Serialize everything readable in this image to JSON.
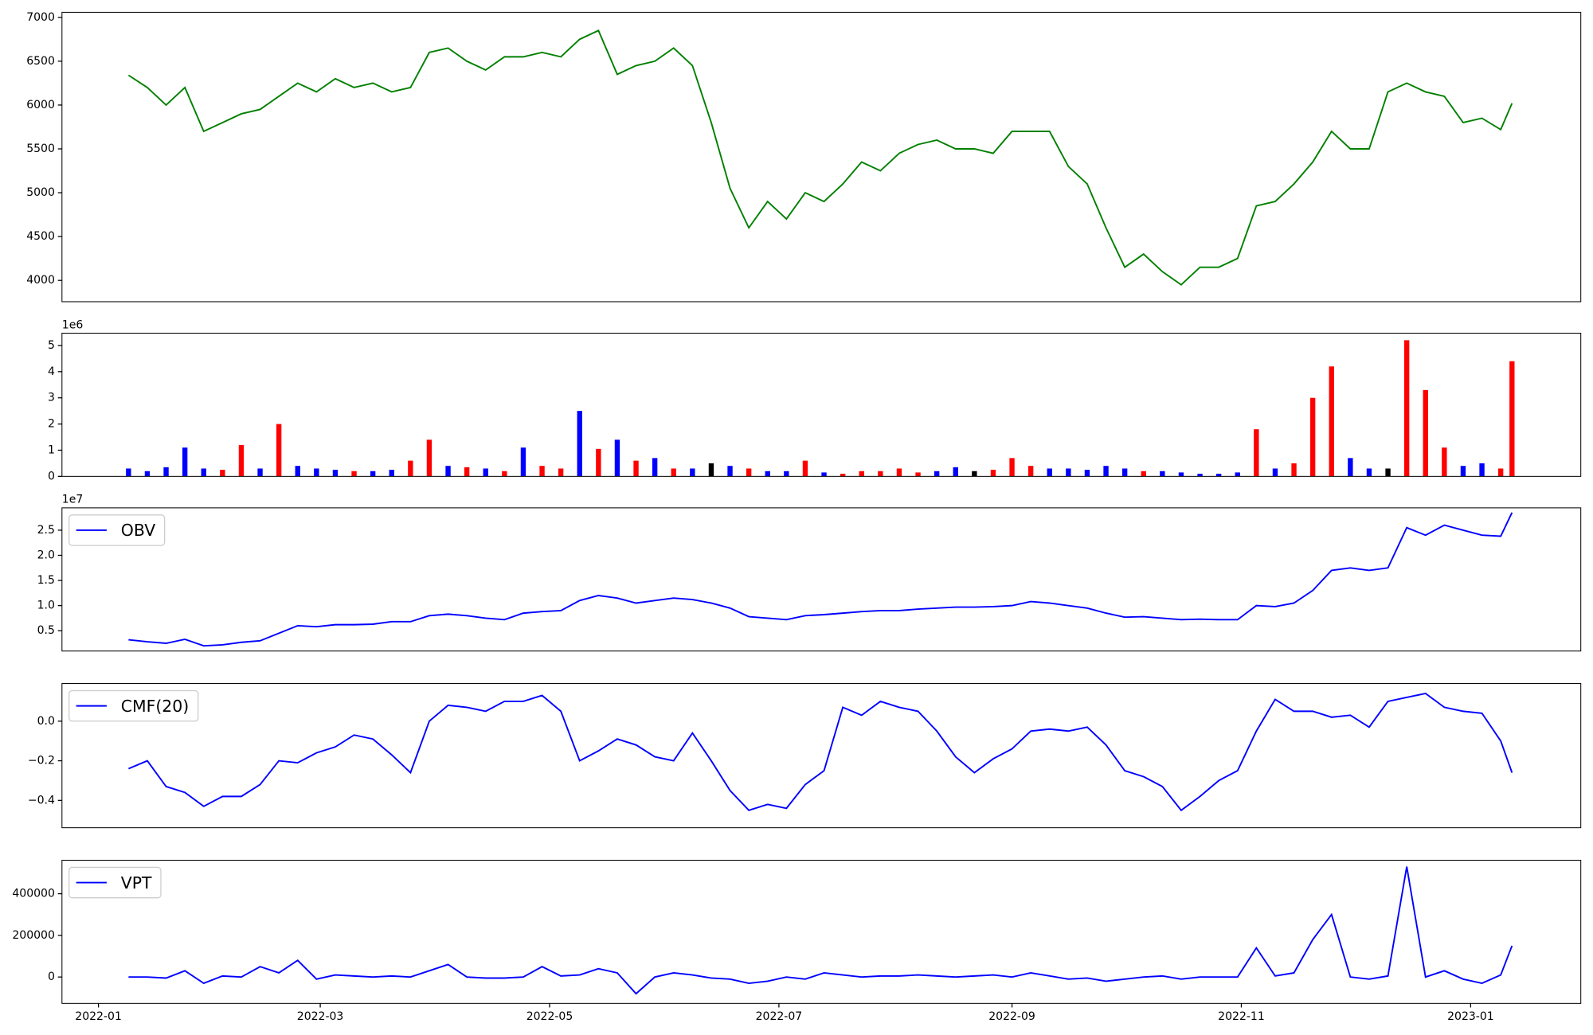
{
  "chart_data": [
    {
      "type": "line",
      "xlim": [
        -9.7,
        394.3
      ],
      "x": [
        8,
        13,
        18,
        23,
        28,
        33,
        38,
        43,
        48,
        53,
        58,
        63,
        68,
        73,
        78,
        83,
        88,
        93,
        98,
        103,
        108,
        113,
        118,
        123,
        128,
        133,
        138,
        143,
        148,
        153,
        158,
        163,
        168,
        173,
        178,
        183,
        188,
        193,
        198,
        203,
        208,
        213,
        218,
        223,
        228,
        233,
        238,
        243,
        248,
        253,
        258,
        263,
        268,
        273,
        278,
        283,
        288,
        293,
        298,
        303,
        308,
        313,
        318,
        323,
        328,
        333,
        338,
        343,
        348,
        353,
        358,
        363,
        368,
        373,
        376
      ],
      "ylim": [
        3757,
        7058
      ],
      "yticks": [
        4000,
        4500,
        5000,
        5500,
        6000,
        6500,
        7000
      ],
      "series": [
        {
          "color": "green",
          "values": [
            6340,
            6200,
            6000,
            6200,
            5700,
            5800,
            5900,
            5950,
            6100,
            6250,
            6150,
            6300,
            6200,
            6250,
            6150,
            6200,
            6600,
            6650,
            6500,
            6400,
            6550,
            6550,
            6600,
            6550,
            6750,
            6850,
            6350,
            6450,
            6500,
            6650,
            6450,
            5800,
            5050,
            4600,
            4900,
            4700,
            5000,
            4900,
            5100,
            5350,
            5250,
            5450,
            5550,
            5600,
            5500,
            5500,
            5450,
            5700,
            5700,
            5700,
            5300,
            5100,
            4600,
            4150,
            4300,
            4100,
            3950,
            4150,
            4150,
            4250,
            4850,
            4900,
            5100,
            5350,
            5700,
            5500,
            5500,
            6150,
            6250,
            6150,
            6100,
            5800,
            5850,
            5720,
            6020
          ]
        }
      ]
    },
    {
      "type": "bar",
      "xlim": [
        -9.7,
        394.3
      ],
      "offset_label": "1e6",
      "x": [
        8,
        13,
        18,
        23,
        28,
        33,
        38,
        43,
        48,
        53,
        58,
        63,
        68,
        73,
        78,
        83,
        88,
        93,
        98,
        103,
        108,
        113,
        118,
        123,
        128,
        133,
        138,
        143,
        148,
        153,
        158,
        163,
        168,
        173,
        178,
        183,
        188,
        193,
        198,
        203,
        208,
        213,
        218,
        223,
        228,
        233,
        238,
        243,
        248,
        253,
        258,
        263,
        268,
        273,
        278,
        283,
        288,
        293,
        298,
        303,
        308,
        313,
        318,
        323,
        328,
        333,
        338,
        343,
        348,
        353,
        358,
        363,
        368,
        373,
        376
      ],
      "ylim": [
        0,
        5470000
      ],
      "yticks": [
        0,
        {
          "value": 1000000,
          "label": "1"
        },
        {
          "value": 2000000,
          "label": "2"
        },
        {
          "value": 3000000,
          "label": "3"
        },
        {
          "value": 4000000,
          "label": "4"
        },
        {
          "value": 5000000,
          "label": "5"
        }
      ],
      "values": [
        300000,
        200000,
        350000,
        1100000,
        300000,
        250000,
        1200000,
        300000,
        2000000,
        400000,
        300000,
        250000,
        200000,
        200000,
        250000,
        600000,
        1400000,
        400000,
        350000,
        300000,
        200000,
        1100000,
        400000,
        300000,
        2500000,
        1050000,
        1400000,
        600000,
        700000,
        300000,
        300000,
        500000,
        400000,
        300000,
        200000,
        200000,
        600000,
        150000,
        100000,
        200000,
        200000,
        300000,
        150000,
        200000,
        350000,
        200000,
        250000,
        700000,
        400000,
        300000,
        300000,
        250000,
        400000,
        300000,
        200000,
        200000,
        150000,
        100000,
        100000,
        150000,
        1800000,
        300000,
        500000,
        3000000,
        4200000,
        700000,
        300000,
        300000,
        5200000,
        3300000,
        1100000,
        400000,
        500000,
        300000,
        4400000
      ],
      "colors": [
        "blue",
        "blue",
        "blue",
        "blue",
        "blue",
        "red",
        "red",
        "blue",
        "red",
        "blue",
        "blue",
        "blue",
        "red",
        "blue",
        "blue",
        "red",
        "red",
        "blue",
        "red",
        "blue",
        "red",
        "blue",
        "red",
        "red",
        "blue",
        "red",
        "blue",
        "red",
        "blue",
        "red",
        "blue",
        "black",
        "blue",
        "red",
        "blue",
        "blue",
        "red",
        "blue",
        "red",
        "red",
        "red",
        "red",
        "red",
        "blue",
        "blue",
        "black",
        "red",
        "red",
        "red",
        "blue",
        "blue",
        "blue",
        "blue",
        "blue",
        "red",
        "blue",
        "blue",
        "blue",
        "blue",
        "blue",
        "red",
        "blue",
        "red",
        "red",
        "red",
        "blue",
        "blue",
        "black",
        "red",
        "red",
        "red",
        "blue",
        "blue",
        "red",
        "red"
      ]
    },
    {
      "type": "line",
      "xlim": [
        -9.7,
        394.3
      ],
      "offset_label": "1e7",
      "legend": "upper left",
      "x": [
        8,
        13,
        18,
        23,
        28,
        33,
        38,
        43,
        48,
        53,
        58,
        63,
        68,
        73,
        78,
        83,
        88,
        93,
        98,
        103,
        108,
        113,
        118,
        123,
        128,
        133,
        138,
        143,
        148,
        153,
        158,
        163,
        168,
        173,
        178,
        183,
        188,
        193,
        198,
        203,
        208,
        213,
        218,
        223,
        228,
        233,
        238,
        243,
        248,
        253,
        258,
        263,
        268,
        273,
        278,
        283,
        288,
        293,
        298,
        303,
        308,
        313,
        318,
        323,
        328,
        333,
        338,
        343,
        348,
        353,
        358,
        363,
        368,
        373,
        376
      ],
      "ylim": [
        960000,
        29440000
      ],
      "yticks": [
        {
          "value": 5000000,
          "label": "0.5"
        },
        {
          "value": 10000000,
          "label": "1.0"
        },
        {
          "value": 15000000,
          "label": "1.5"
        },
        {
          "value": 20000000,
          "label": "2.0"
        },
        {
          "value": 25000000,
          "label": "2.5"
        }
      ],
      "series": [
        {
          "name": "OBV",
          "color": "blue",
          "values": [
            3200000,
            2800000,
            2500000,
            3300000,
            2000000,
            2200000,
            2700000,
            3000000,
            4500000,
            6000000,
            5800000,
            6200000,
            6200000,
            6300000,
            6800000,
            6800000,
            8000000,
            8300000,
            8000000,
            7500000,
            7200000,
            8500000,
            8800000,
            9000000,
            11000000,
            12000000,
            11500000,
            10500000,
            11000000,
            11500000,
            11200000,
            10500000,
            9500000,
            7800000,
            7500000,
            7200000,
            8000000,
            8200000,
            8500000,
            8800000,
            9000000,
            9000000,
            9300000,
            9500000,
            9700000,
            9700000,
            9800000,
            10000000,
            10800000,
            10500000,
            10000000,
            9500000,
            8500000,
            7700000,
            7800000,
            7500000,
            7200000,
            7300000,
            7200000,
            7200000,
            10000000,
            9800000,
            10500000,
            13000000,
            17000000,
            17500000,
            17000000,
            17500000,
            25500000,
            24000000,
            26000000,
            25000000,
            24000000,
            23800000,
            28500000
          ]
        }
      ]
    },
    {
      "type": "line",
      "xlim": [
        -9.7,
        394.3
      ],
      "legend": "upper left",
      "x": [
        8,
        13,
        18,
        23,
        28,
        33,
        38,
        43,
        48,
        53,
        58,
        63,
        68,
        73,
        78,
        83,
        88,
        93,
        98,
        103,
        108,
        113,
        118,
        123,
        128,
        133,
        138,
        143,
        148,
        153,
        158,
        163,
        168,
        173,
        178,
        183,
        188,
        193,
        198,
        203,
        208,
        213,
        218,
        223,
        228,
        233,
        238,
        243,
        248,
        253,
        258,
        263,
        268,
        273,
        278,
        283,
        288,
        293,
        298,
        303,
        308,
        313,
        318,
        323,
        328,
        333,
        338,
        343,
        348,
        353,
        358,
        363,
        368,
        373,
        376
      ],
      "ylim": [
        -0.538,
        0.19
      ],
      "yticks": [
        {
          "value": -0.4,
          "label": "−0.4"
        },
        {
          "value": -0.2,
          "label": "−0.2"
        },
        {
          "value": 0,
          "label": "0.0"
        }
      ],
      "series": [
        {
          "name": "CMF(20)",
          "color": "blue",
          "values": [
            -0.24,
            -0.2,
            -0.33,
            -0.36,
            -0.43,
            -0.38,
            -0.38,
            -0.32,
            -0.2,
            -0.21,
            -0.16,
            -0.13,
            -0.07,
            -0.09,
            -0.17,
            -0.26,
            0.0,
            0.08,
            0.07,
            0.05,
            0.1,
            0.1,
            0.13,
            0.05,
            -0.2,
            -0.15,
            -0.09,
            -0.12,
            -0.18,
            -0.2,
            -0.06,
            -0.2,
            -0.35,
            -0.45,
            -0.42,
            -0.44,
            -0.32,
            -0.25,
            0.07,
            0.03,
            0.1,
            0.07,
            0.05,
            -0.05,
            -0.18,
            -0.26,
            -0.19,
            -0.14,
            -0.05,
            -0.04,
            -0.05,
            -0.03,
            -0.12,
            -0.25,
            -0.28,
            -0.33,
            -0.45,
            -0.38,
            -0.3,
            -0.25,
            -0.05,
            0.11,
            0.05,
            0.05,
            0.02,
            0.03,
            -0.03,
            0.1,
            0.12,
            0.14,
            0.07,
            0.05,
            0.04,
            -0.1,
            -0.26
          ]
        }
      ]
    },
    {
      "type": "line",
      "xlim": [
        -9.7,
        394.3
      ],
      "legend": "upper left",
      "x": [
        8,
        13,
        18,
        23,
        28,
        33,
        38,
        43,
        48,
        53,
        58,
        63,
        68,
        73,
        78,
        83,
        88,
        93,
        98,
        103,
        108,
        113,
        118,
        123,
        128,
        133,
        138,
        143,
        148,
        153,
        158,
        163,
        168,
        173,
        178,
        183,
        188,
        193,
        198,
        203,
        208,
        213,
        218,
        223,
        228,
        233,
        238,
        243,
        248,
        253,
        258,
        263,
        268,
        273,
        278,
        283,
        288,
        293,
        298,
        303,
        308,
        313,
        318,
        323,
        328,
        333,
        338,
        343,
        348,
        353,
        358,
        363,
        368,
        373,
        376
      ],
      "ylim": [
        -126800,
        561000
      ],
      "yticks": [
        0,
        200000,
        400000
      ],
      "xticks": [
        {
          "value": 0,
          "label": "2022-01"
        },
        {
          "value": 59,
          "label": "2022-03"
        },
        {
          "value": 120,
          "label": "2022-05"
        },
        {
          "value": 181,
          "label": "2022-07"
        },
        {
          "value": 243,
          "label": "2022-09"
        },
        {
          "value": 304,
          "label": "2022-11"
        },
        {
          "value": 365,
          "label": "2023-01"
        }
      ],
      "series": [
        {
          "name": "VPT",
          "color": "blue",
          "values": [
            0,
            0,
            -5000,
            30000,
            -30000,
            5000,
            0,
            50000,
            20000,
            80000,
            -10000,
            10000,
            5000,
            0,
            5000,
            0,
            30000,
            60000,
            0,
            -5000,
            -5000,
            0,
            50000,
            5000,
            10000,
            40000,
            20000,
            -80000,
            0,
            20000,
            10000,
            -5000,
            -10000,
            -30000,
            -20000,
            0,
            -10000,
            20000,
            10000,
            0,
            5000,
            5000,
            10000,
            5000,
            0,
            5000,
            10000,
            0,
            20000,
            5000,
            -10000,
            -5000,
            -20000,
            -10000,
            0,
            5000,
            -10000,
            0,
            0,
            0,
            140000,
            5000,
            20000,
            180000,
            300000,
            0,
            -10000,
            5000,
            530000,
            0,
            30000,
            -10000,
            -30000,
            10000,
            150000
          ]
        }
      ]
    }
  ]
}
